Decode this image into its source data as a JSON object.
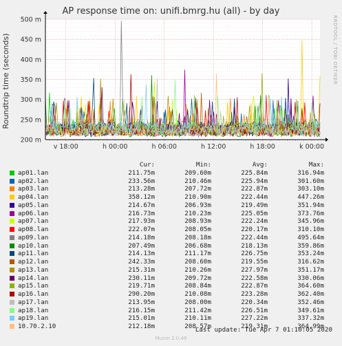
{
  "title": "AP response time on: unifi.bmrg.hu (all) - by day",
  "side_text": "RRDTOOL / TOBI OETIKER",
  "last_update": "Last update: Tue Apr  7 01:10:05 2020",
  "footer": "Munin 2.0.49",
  "legend_headers": {
    "cur": "Cur:",
    "min": "Min:",
    "avg": "Avg:",
    "max": "Max:"
  },
  "chart_data": {
    "type": "line",
    "title": "AP response time on: unifi.bmrg.hu (all) - by day",
    "ylabel": "Roundtrip time (seconds)",
    "xlabel": "",
    "ylim": [
      200,
      500
    ],
    "yticks": [
      "200 m",
      "250 m",
      "300 m",
      "350 m",
      "400 m",
      "450 m",
      "500 m"
    ],
    "xticks": [
      "v 18:00",
      "h 00:00",
      "h 06:00",
      "h 12:00",
      "h 18:00",
      "k 00:00"
    ],
    "grid": true,
    "legend_position": "bottom",
    "series": [
      {
        "name": "ap01.lan",
        "color": "#00cc00",
        "cur": "211.75m",
        "min": "209.60m",
        "avg": "225.84m",
        "max": "316.94m"
      },
      {
        "name": "ap02.lan",
        "color": "#0066b3",
        "cur": "233.56m",
        "min": "210.46m",
        "avg": "225.94m",
        "max": "301.60m"
      },
      {
        "name": "ap03.lan",
        "color": "#ff8000",
        "cur": "213.28m",
        "min": "207.72m",
        "avg": "222.87m",
        "max": "303.10m"
      },
      {
        "name": "ap04.lan",
        "color": "#ffcc00",
        "cur": "358.12m",
        "min": "210.90m",
        "avg": "222.44m",
        "max": "447.26m"
      },
      {
        "name": "ap05.lan",
        "color": "#330099",
        "cur": "214.67m",
        "min": "206.93m",
        "avg": "219.49m",
        "max": "351.94m"
      },
      {
        "name": "ap06.lan",
        "color": "#990099",
        "cur": "216.73m",
        "min": "210.23m",
        "avg": "225.05m",
        "max": "373.76m"
      },
      {
        "name": "ap07.lan",
        "color": "#ccff00",
        "cur": "217.93m",
        "min": "208.93m",
        "avg": "222.24m",
        "max": "345.96m"
      },
      {
        "name": "ap08.lan",
        "color": "#ff0000",
        "cur": "222.07m",
        "min": "208.05m",
        "avg": "220.17m",
        "max": "310.10m"
      },
      {
        "name": "ap09.lan",
        "color": "#808080",
        "cur": "214.18m",
        "min": "208.18m",
        "avg": "222.44m",
        "max": "495.64m"
      },
      {
        "name": "ap10.lan",
        "color": "#008f00",
        "cur": "207.49m",
        "min": "206.68m",
        "avg": "218.13m",
        "max": "359.86m"
      },
      {
        "name": "ap11.lan",
        "color": "#00487d",
        "cur": "214.13m",
        "min": "211.17m",
        "avg": "226.75m",
        "max": "353.24m"
      },
      {
        "name": "ap12.lan",
        "color": "#b35a00",
        "cur": "242.33m",
        "min": "208.60m",
        "avg": "219.55m",
        "max": "316.62m"
      },
      {
        "name": "ap13.lan",
        "color": "#b38f00",
        "cur": "215.31m",
        "min": "210.26m",
        "avg": "227.97m",
        "max": "351.17m"
      },
      {
        "name": "ap14.lan",
        "color": "#6b006b",
        "cur": "230.11m",
        "min": "209.72m",
        "avg": "222.58m",
        "max": "330.06m"
      },
      {
        "name": "ap15.lan",
        "color": "#8fb300",
        "cur": "219.71m",
        "min": "208.84m",
        "avg": "222.87m",
        "max": "364.60m"
      },
      {
        "name": "ap16.lan",
        "color": "#b30000",
        "cur": "290.20m",
        "min": "210.08m",
        "avg": "223.28m",
        "max": "362.40m"
      },
      {
        "name": "ap17.lan",
        "color": "#bebebe",
        "cur": "213.95m",
        "min": "208.00m",
        "avg": "220.34m",
        "max": "352.46m"
      },
      {
        "name": "ap18.lan",
        "color": "#80ff80",
        "cur": "216.15m",
        "min": "211.42m",
        "avg": "226.51m",
        "max": "349.61m"
      },
      {
        "name": "ap19.lan",
        "color": "#80c9ff",
        "cur": "215.01m",
        "min": "210.11m",
        "avg": "227.22m",
        "max": "337.32m"
      },
      {
        "name": "10.70.2.10",
        "color": "#ffc080",
        "cur": "212.18m",
        "min": "208.57m",
        "avg": "219.31m",
        "max": "364.99m"
      }
    ]
  }
}
